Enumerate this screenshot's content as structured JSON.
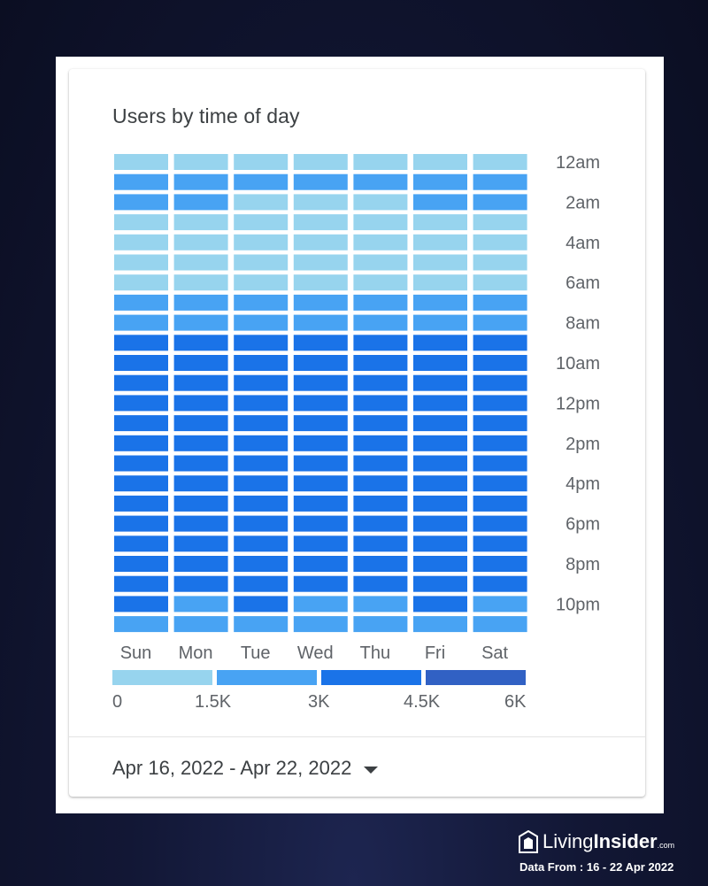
{
  "card": {
    "title": "Users by time of day",
    "date_range": "Apr 16, 2022 - Apr 22, 2022"
  },
  "chart_data": {
    "type": "heatmap",
    "title": "Users by time of day",
    "x_categories": [
      "Sun",
      "Mon",
      "Tue",
      "Wed",
      "Thu",
      "Fri",
      "Sat"
    ],
    "y_categories": [
      "12am",
      "1am",
      "2am",
      "3am",
      "4am",
      "5am",
      "6am",
      "7am",
      "8am",
      "9am",
      "10am",
      "11am",
      "12pm",
      "1pm",
      "2pm",
      "3pm",
      "4pm",
      "5pm",
      "6pm",
      "7pm",
      "8pm",
      "9pm",
      "10pm",
      "11pm"
    ],
    "y_tick_labels": [
      "12am",
      "2am",
      "4am",
      "6am",
      "8am",
      "10am",
      "12pm",
      "2pm",
      "4pm",
      "6pm",
      "8pm",
      "10pm"
    ],
    "values": [
      [
        1200,
        1200,
        1200,
        1200,
        1200,
        1200,
        1200
      ],
      [
        2200,
        2200,
        2200,
        2200,
        2200,
        2200,
        2200
      ],
      [
        2200,
        2200,
        1200,
        1200,
        1200,
        2200,
        2200
      ],
      [
        1200,
        1200,
        1200,
        1200,
        1200,
        1200,
        1200
      ],
      [
        1200,
        1200,
        1200,
        1200,
        1200,
        1200,
        1200
      ],
      [
        1200,
        1200,
        1200,
        1200,
        1200,
        1200,
        1200
      ],
      [
        1200,
        1200,
        1200,
        1200,
        1200,
        1200,
        1200
      ],
      [
        2200,
        2200,
        2200,
        2200,
        2200,
        2200,
        2200
      ],
      [
        2200,
        2200,
        2200,
        2200,
        2200,
        2200,
        2200
      ],
      [
        3700,
        3700,
        3700,
        3700,
        3700,
        3700,
        3700
      ],
      [
        3700,
        3700,
        3700,
        3700,
        3700,
        3700,
        3700
      ],
      [
        3700,
        3700,
        3700,
        3700,
        3700,
        3700,
        3700
      ],
      [
        3700,
        3700,
        3700,
        3700,
        3700,
        3700,
        3700
      ],
      [
        3700,
        3700,
        3700,
        3700,
        3700,
        3700,
        3700
      ],
      [
        3700,
        3700,
        3700,
        3700,
        3700,
        3700,
        3700
      ],
      [
        3700,
        3700,
        3700,
        3700,
        3700,
        3700,
        3700
      ],
      [
        3700,
        3700,
        3700,
        3700,
        3700,
        3700,
        3700
      ],
      [
        3700,
        3700,
        3700,
        3700,
        3700,
        3700,
        3700
      ],
      [
        3700,
        3700,
        3700,
        3700,
        3700,
        3700,
        3700
      ],
      [
        3700,
        3700,
        3700,
        3700,
        3700,
        3700,
        3700
      ],
      [
        3700,
        3700,
        3700,
        3700,
        3700,
        3700,
        3700
      ],
      [
        3700,
        3700,
        3700,
        3700,
        3700,
        3700,
        3700
      ],
      [
        3700,
        2200,
        3700,
        2200,
        2200,
        3700,
        2200
      ],
      [
        2200,
        2200,
        2200,
        2200,
        2200,
        2200,
        2200
      ]
    ],
    "legend": {
      "labels": [
        "0",
        "1.5K",
        "3K",
        "4.5K",
        "6K"
      ],
      "bins": [
        [
          0,
          1500
        ],
        [
          1500,
          3000
        ],
        [
          3000,
          4500
        ],
        [
          4500,
          6000
        ]
      ],
      "colors": [
        "#97d4ee",
        "#48a3f3",
        "#1a73e8",
        "#3161c4"
      ]
    }
  },
  "branding": {
    "name_light": "Living",
    "name_bold": "Insider",
    "name_suffix": ".com",
    "data_from": "Data From : 16 - 22 Apr 2022"
  }
}
